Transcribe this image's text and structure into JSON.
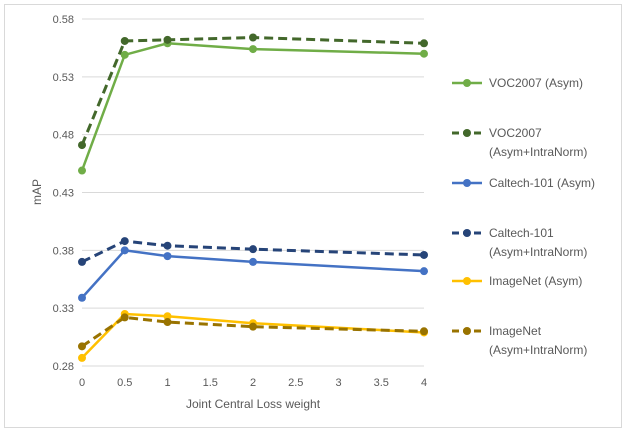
{
  "chart_data": {
    "type": "line",
    "title": "",
    "xlabel": "Joint Central Loss weight",
    "ylabel": "mAP",
    "xlim": [
      0,
      4
    ],
    "ylim": [
      0.28,
      0.58
    ],
    "x_ticks": [
      "0",
      "0.5",
      "1",
      "1.5",
      "2",
      "2.5",
      "3",
      "3.5",
      "4"
    ],
    "y_ticks": [
      "0.28",
      "0.33",
      "0.38",
      "0.43",
      "0.48",
      "0.53",
      "0.58"
    ],
    "grid": "horizontal",
    "legend_position": "right",
    "x": [
      0,
      0.5,
      1,
      2,
      4
    ],
    "series": [
      {
        "name": "VOC2007 (Asym)",
        "legend_lines": [
          "VOC2007 (Asym)"
        ],
        "color": "#70ad47",
        "dashed": false,
        "values": [
          0.449,
          0.549,
          0.559,
          0.554,
          0.55
        ]
      },
      {
        "name": "VOC2007 (Asym+IntraNorm)",
        "legend_lines": [
          "VOC2007",
          "(Asym+IntraNorm)"
        ],
        "color": "#43682b",
        "dashed": true,
        "values": [
          0.471,
          0.561,
          0.562,
          0.564,
          0.559
        ]
      },
      {
        "name": "Caltech-101 (Asym)",
        "legend_lines": [
          "Caltech-101 (Asym)"
        ],
        "color": "#4472c4",
        "dashed": false,
        "values": [
          0.339,
          0.38,
          0.375,
          0.37,
          0.362
        ]
      },
      {
        "name": "Caltech-101 (Asym+IntraNorm)",
        "legend_lines": [
          "Caltech-101",
          "(Asym+IntraNorm)"
        ],
        "color": "#264478",
        "dashed": true,
        "values": [
          0.37,
          0.388,
          0.384,
          0.381,
          0.376
        ]
      },
      {
        "name": "ImageNet (Asym)",
        "legend_lines": [
          "ImageNet (Asym)"
        ],
        "color": "#ffc000",
        "dashed": false,
        "values": [
          0.287,
          0.325,
          0.323,
          0.317,
          0.309
        ]
      },
      {
        "name": "ImageNet (Asym+IntraNorm)",
        "legend_lines": [
          "ImageNet",
          "(Asym+IntraNorm)"
        ],
        "color": "#997300",
        "dashed": true,
        "values": [
          0.297,
          0.322,
          0.318,
          0.314,
          0.31
        ]
      }
    ]
  }
}
